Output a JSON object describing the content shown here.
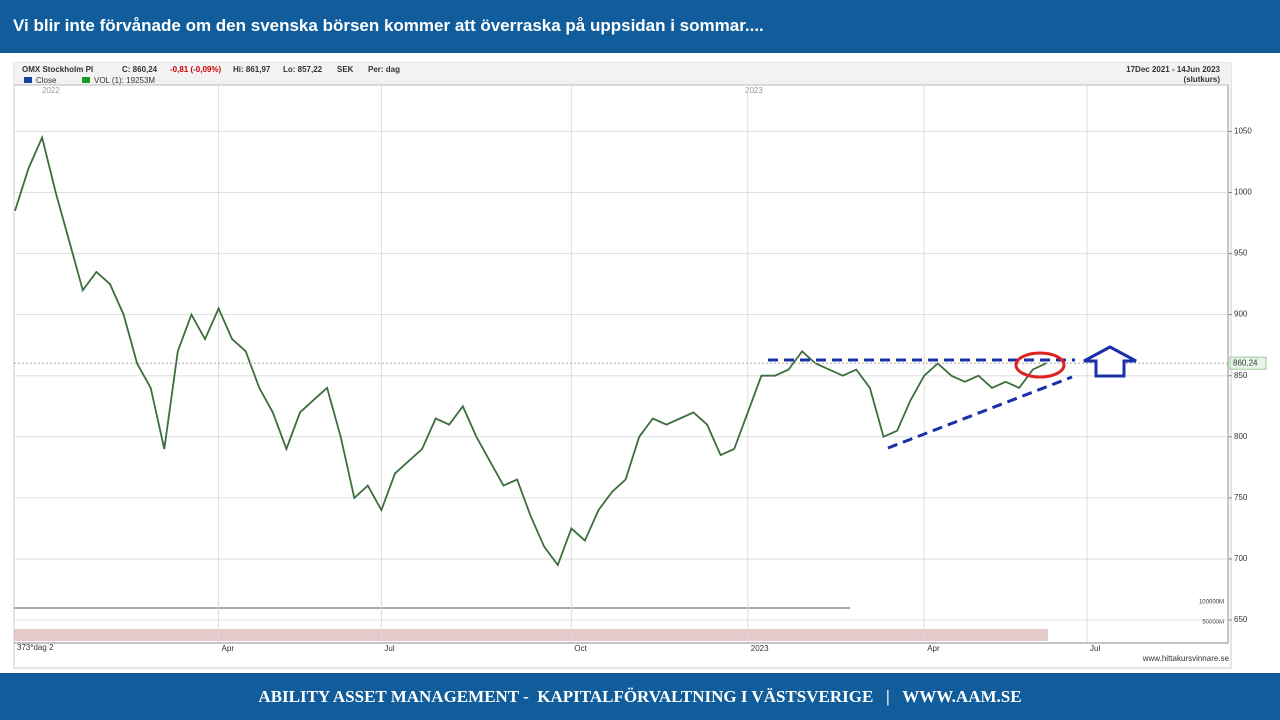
{
  "slide": {
    "title": "Vi blir inte förvånade om den svenska börsen kommer att överraska på uppsidan i sommar....",
    "footer": "ABILITY ASSET MANAGEMENT -  KAPITALFÖRVALTNING I VÄSTSVERIGE   |   WWW.AAM.SE"
  },
  "chart_data": {
    "type": "line",
    "header": {
      "name": "OMX Stockholm PI",
      "close": "C: 860,24",
      "change": "-0,81 (-0,09%)",
      "high": "Hi: 861,97",
      "low": "Lo: 857,22",
      "currency": "SEK",
      "period": "Per: dag",
      "range": "17Dec 2021 - 14Jun 2023",
      "note": "(slutkurs)"
    },
    "legend": [
      "Close",
      "VOL (1): 19253M"
    ],
    "year_labels": [
      "2022",
      "2023"
    ],
    "period_label": "373*dag 2",
    "last_price_label": "860,24",
    "volume_ticks": [
      "100000M",
      "50000M"
    ],
    "source": "www.hittakursvinnare.se",
    "categories": [
      null,
      null,
      null,
      null,
      null,
      null,
      null,
      null,
      null,
      null,
      null,
      null,
      null,
      null,
      null,
      "Apr",
      null,
      null,
      null,
      null,
      null,
      null,
      null,
      null,
      null,
      null,
      null,
      "Jul",
      null,
      null,
      null,
      null,
      null,
      null,
      null,
      null,
      null,
      null,
      null,
      null,
      null,
      "Oct",
      null,
      null,
      null,
      null,
      null,
      null,
      null,
      null,
      null,
      null,
      null,
      null,
      "2023",
      null,
      null,
      null,
      null,
      null,
      null,
      null,
      null,
      null,
      null,
      null,
      null,
      "Apr",
      null,
      null,
      null,
      null,
      null,
      null,
      null,
      null,
      null,
      null,
      null,
      "Jul"
    ],
    "series": [
      {
        "name": "Close",
        "color": "#3d6e3d",
        "values": [
          985,
          1020,
          1045,
          1000,
          960,
          920,
          935,
          925,
          900,
          860,
          840,
          790,
          870,
          900,
          880,
          905,
          880,
          870,
          840,
          820,
          790,
          820,
          830,
          840,
          800,
          750,
          760,
          740,
          770,
          780,
          790,
          815,
          810,
          825,
          800,
          780,
          760,
          765,
          735,
          710,
          695,
          725,
          715,
          740,
          755,
          765,
          800,
          815,
          810,
          815,
          820,
          810,
          785,
          790,
          820,
          850,
          850,
          855,
          870,
          860,
          855,
          850,
          855,
          840,
          800,
          805,
          830,
          850,
          860,
          850,
          845,
          850,
          840,
          845,
          840,
          855,
          860.24,
          null,
          null,
          null
        ]
      }
    ],
    "ylim": [
      632,
      1088
    ],
    "yticks": [
      650,
      700,
      750,
      800,
      850,
      900,
      950,
      1000,
      1050
    ],
    "grid": true
  }
}
